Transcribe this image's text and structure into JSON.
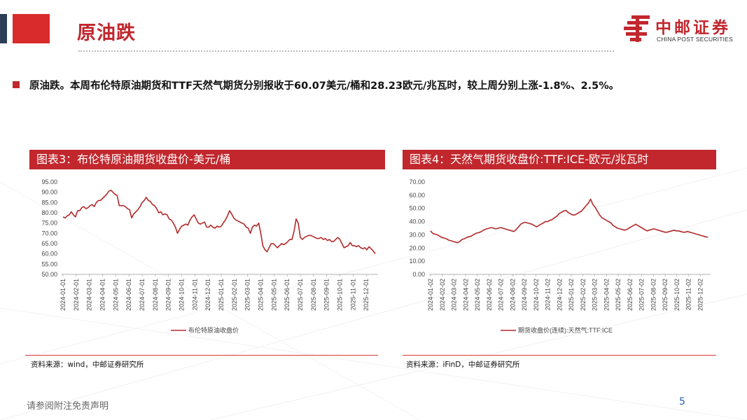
{
  "header": {
    "title": "原油跌",
    "brand_name": "中邮证券",
    "brand_en": "CHINA POST SECURITIES"
  },
  "summary": "原油跌。本周布伦特原油期货和TTF天然气期货分别报收于60.07美元/桶和28.23欧元/兆瓦时，较上周分别上涨-1.8%、2.5%。",
  "colors": {
    "accent": "#c1272d",
    "series": "#b22a2a",
    "dark_bar": "#2b3e55"
  },
  "footer": {
    "disclaimer": "请参阅附注免责声明",
    "page_number": "5"
  },
  "chart_data": [
    {
      "type": "line",
      "title": "图表3：布伦特原油期货收盘价-美元/桶",
      "source": "资料来源：wind，中邮证券研究所",
      "ylim": [
        50,
        95
      ],
      "yticks": [
        "95.00",
        "90.00",
        "85.00",
        "80.00",
        "75.00",
        "70.00",
        "65.00",
        "60.00",
        "55.00",
        "50.00"
      ],
      "xticks": [
        "2024-01-01",
        "2024-02-01",
        "2024-03-01",
        "2024-04-01",
        "2024-05-01",
        "2024-06-01",
        "2024-07-01",
        "2024-08-01",
        "2024-09-01",
        "2024-10-01",
        "2024-11-01",
        "2024-12-01",
        "2025-01-01",
        "2025-02-01",
        "2025-03-01",
        "2025-04-01",
        "2025-05-01",
        "2025-06-01",
        "2025-07-01",
        "2025-08-01",
        "2025-09-01",
        "2025-10-01",
        "2025-11-01",
        "2025-12-01"
      ],
      "series": [
        {
          "name": "布伦特原油收盘价",
          "values": [
            78,
            77.5,
            78.5,
            79,
            80.5,
            79,
            78,
            81,
            81,
            82.5,
            83,
            82,
            82.5,
            83.5,
            84,
            83,
            85,
            86,
            86,
            87,
            88,
            89,
            90.5,
            91,
            90,
            89,
            88.5,
            83.5,
            83.5,
            83.5,
            83,
            82,
            81.5,
            77.5,
            79.5,
            80.5,
            81.5,
            83,
            85,
            86,
            87.5,
            86,
            85.5,
            84,
            83.5,
            82,
            80,
            80.5,
            79,
            79.5,
            79,
            77,
            76.5,
            75,
            73,
            70,
            72,
            73.5,
            74,
            74.5,
            74,
            76.5,
            78,
            79,
            77,
            75,
            74.5,
            75,
            75.5,
            73,
            73,
            74,
            73,
            72.5,
            73.5,
            73,
            73.5,
            75,
            76.5,
            78.5,
            81,
            79.5,
            77.5,
            76.5,
            76,
            75.5,
            75,
            74.5,
            73,
            72.5,
            70,
            73,
            74,
            73.5,
            75,
            70,
            64,
            62,
            61,
            63,
            65,
            65,
            64,
            63,
            64,
            65,
            64.5,
            65,
            66,
            67,
            67,
            71,
            77,
            75,
            68,
            67,
            68,
            68.5,
            69,
            69,
            68.5,
            68,
            67.5,
            67.5,
            68,
            67,
            67.5,
            66.5,
            67,
            66,
            66,
            67,
            68,
            67,
            65,
            63,
            63.5,
            64,
            65.5,
            64,
            64,
            63.5,
            64,
            63,
            62.5,
            63,
            62,
            63.5,
            62.5,
            61.5,
            60.07
          ]
        }
      ]
    },
    {
      "type": "line",
      "title": "图表4：天然气期货收盘价:TTF:ICE-欧元/兆瓦时",
      "source": "资料来源：iFinD，中邮证券研究所",
      "ylim": [
        0,
        70
      ],
      "yticks": [
        "70.00",
        "60.00",
        "50.00",
        "40.00",
        "30.00",
        "20.00",
        "10.00",
        "0.00"
      ],
      "xticks": [
        "2024-01-02",
        "2024-02-02",
        "2024-03-02",
        "2024-04-02",
        "2024-05-02",
        "2024-06-02",
        "2024-07-02",
        "2024-08-02",
        "2024-09-02",
        "2024-10-02",
        "2024-11-02",
        "2024-12-02",
        "2025-01-02",
        "2025-02-02",
        "2025-03-02",
        "2025-04-02",
        "2025-05-02",
        "2025-06-02",
        "2025-07-02",
        "2025-08-02",
        "2025-09-02",
        "2025-10-02",
        "2025-11-02",
        "2025-12-02"
      ],
      "series": [
        {
          "name": "期货收盘价(连续):天然气:TTF:ICE",
          "values": [
            33,
            31,
            30.5,
            30,
            29,
            28,
            27.5,
            27,
            26,
            25.5,
            25,
            24.5,
            24,
            25,
            26.5,
            27,
            28,
            28.5,
            29,
            30,
            31,
            31.5,
            32,
            33,
            34,
            34.5,
            35,
            35.5,
            35,
            34.5,
            35,
            35.5,
            35,
            34.5,
            34,
            33.5,
            33,
            32.5,
            34,
            36,
            38,
            39,
            39.5,
            39,
            38.5,
            38,
            37,
            36,
            37,
            38,
            39,
            40,
            40,
            41,
            41.5,
            43,
            44,
            46,
            47,
            48,
            48.5,
            47,
            46,
            45,
            45,
            46,
            47,
            48,
            50,
            52,
            54,
            57,
            53,
            51,
            48,
            45,
            43,
            42,
            41,
            40,
            39,
            37,
            36,
            35,
            34.5,
            34,
            33.5,
            34,
            35,
            36,
            37,
            38,
            37,
            36,
            35,
            34,
            33,
            33.5,
            34,
            34.5,
            34,
            33.5,
            33,
            32.5,
            32,
            32,
            32.5,
            33,
            33.5,
            33,
            33,
            32.5,
            32,
            32,
            32.5,
            32,
            31.5,
            31,
            30.5,
            30,
            29.5,
            29,
            28.5,
            28.23
          ]
        }
      ]
    }
  ]
}
